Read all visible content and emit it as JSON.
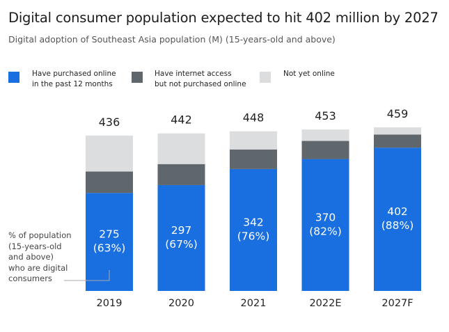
{
  "chart_data": {
    "type": "bar",
    "stacked": true,
    "title": "Digital consumer population expected to hit 402 million by 2027",
    "subtitle": "Digital adoption of Southeast Asia population (M) (15-years-old and above)",
    "categories": [
      "2019",
      "2020",
      "2021",
      "2022E",
      "2027F"
    ],
    "series": [
      {
        "name": "Have purchased online\nin the past 12 months",
        "color": "#1a6fe0",
        "values": [
          275,
          297,
          342,
          370,
          402
        ]
      },
      {
        "name": "Have internet access\nbut not purchased online",
        "color": "#5f676d",
        "values": [
          60,
          59,
          55,
          51,
          37
        ]
      },
      {
        "name": "Not yet online",
        "color": "#dcdddf",
        "values": [
          101,
          86,
          51,
          32,
          20
        ]
      }
    ],
    "totals": [
      "436",
      "442",
      "448",
      "453",
      "459"
    ],
    "blue_labels": [
      [
        "275",
        "(63%)"
      ],
      [
        "297",
        "(67%)"
      ],
      [
        "342",
        "(76%)"
      ],
      [
        "370",
        "(82%)"
      ],
      [
        "402",
        "(88%)"
      ]
    ],
    "annotation": "% of population\n(15-years-old\nand above)\nwho are digital\nconsumers",
    "ylim": [
      0,
      470
    ],
    "legend_position": "top-left",
    "grid": false
  }
}
